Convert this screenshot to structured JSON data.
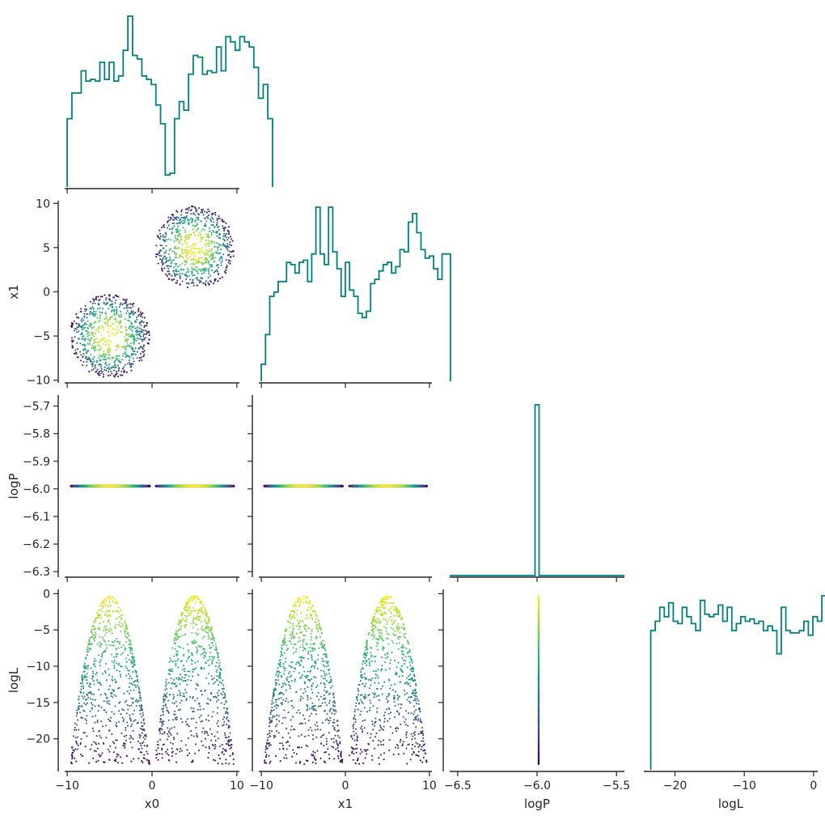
{
  "chart_data": {
    "type": "scatter",
    "title": "",
    "parameters": [
      "x0",
      "x1",
      "logP",
      "logL"
    ],
    "xlabels": {
      "x0": "x0",
      "x1": "x1",
      "logP": "logP",
      "logL": "logL"
    },
    "ylabels": {
      "x1": "x1",
      "logP": "logP",
      "logL": "logL"
    },
    "ranges": {
      "x0": [
        -10.3,
        10.3
      ],
      "x1": [
        -10.3,
        10.3
      ],
      "logP": [
        -6.32,
        -5.66
      ],
      "logL": [
        -24.5,
        0.6
      ],
      "logP_diag": [
        -6.55,
        -5.45
      ]
    },
    "ticks": {
      "x0": [
        -10,
        0,
        10
      ],
      "x1": [
        -10,
        0,
        10
      ],
      "x1_y": [
        -10,
        -5,
        0,
        5,
        10
      ],
      "logP_y": [
        -6.3,
        -6.2,
        -6.1,
        -6.0,
        -5.9,
        -5.8,
        -5.7
      ],
      "logP_x": [
        -6.5,
        -6.0,
        -5.5
      ],
      "logL": [
        -20,
        -10,
        0
      ],
      "logL_y": [
        -20,
        -15,
        -10,
        -5,
        0
      ]
    },
    "tick_labels": {
      "x0": [
        "−10",
        "0",
        "10"
      ],
      "x1": [
        "−10",
        "0",
        "10"
      ],
      "x1_y": [
        "−10",
        "−5",
        "0",
        "5",
        "10"
      ],
      "logP_y": [
        "−6.3",
        "−6.2",
        "−6.1",
        "−6.0",
        "−5.9",
        "−5.8",
        "−5.7"
      ],
      "logP_x": [
        "−6.5",
        "−6.0",
        "−5.5"
      ],
      "logL_x": [
        "−20",
        "−10",
        "0"
      ],
      "logL_y": [
        "−20",
        "−15",
        "−10",
        "−5",
        "0"
      ]
    },
    "samples": {
      "modes": [
        {
          "center": [
            -5,
            -5
          ],
          "radius": 4.7
        },
        {
          "center": [
            5,
            5
          ],
          "radius": 4.7
        }
      ],
      "n_per_mode": 750,
      "logP_value": -5.99,
      "logL_range": [
        -23.5,
        -0.3
      ],
      "colormap": "viridis",
      "color_by": "logL"
    },
    "histograms": {
      "x0": {
        "bin_edges": [
          -10,
          0.55
        ],
        "counts": [
          40,
          55,
          55,
          68,
          62,
          63,
          62,
          73,
          63,
          73,
          62,
          65,
          80,
          100,
          77,
          75,
          65,
          63,
          60,
          48,
          37,
          7,
          8,
          40,
          50,
          45,
          66,
          77,
          76,
          66,
          68,
          67,
          82,
          68,
          88,
          85,
          80,
          88,
          85,
          82,
          70,
          52,
          60,
          40
        ]
      },
      "x1": {
        "bin_edges": [
          -10,
          0.5
        ],
        "counts": [
          8,
          22,
          40,
          42,
          47,
          47,
          56,
          55,
          51,
          56,
          57,
          47,
          60,
          82,
          60,
          55,
          82,
          61,
          53,
          40,
          56,
          43,
          40,
          32,
          30,
          33,
          46,
          48,
          52,
          55,
          56,
          51,
          54,
          62,
          61,
          75,
          79,
          70,
          62,
          58,
          59,
          53,
          48,
          60,
          60
        ]
      },
      "logP": {
        "value": -6.0,
        "count": 1500
      },
      "logL": {
        "bin_edges": [
          -23.5,
          0.65
        ],
        "counts": [
          60,
          64,
          70,
          66,
          72,
          64,
          63,
          70,
          66,
          63,
          60,
          73,
          67,
          66,
          67,
          71,
          64,
          70,
          60,
          63,
          66,
          64,
          65,
          63,
          64,
          60,
          62,
          60,
          50,
          70,
          60,
          59,
          59,
          60,
          64,
          58,
          66,
          64,
          75
        ]
      }
    },
    "colors": {
      "hist": "#008080",
      "axis": "#262626"
    },
    "grid": false,
    "legend": "none"
  }
}
